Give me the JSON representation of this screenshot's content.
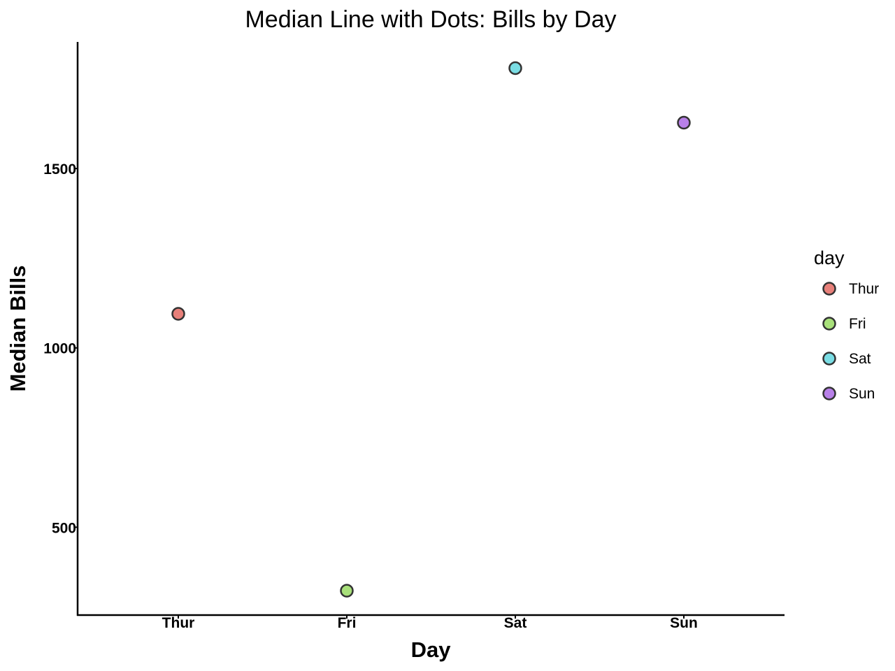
{
  "chart_data": {
    "type": "scatter",
    "title": "Median Line with Dots: Bills by Day",
    "xlabel": "Day",
    "ylabel": "Median Bills",
    "categories": [
      "Thur",
      "Fri",
      "Sat",
      "Sun"
    ],
    "values": [
      1095,
      323,
      1780,
      1628
    ],
    "colors": [
      "#E8807A",
      "#A8E07A",
      "#7ADDE4",
      "#B880E8"
    ],
    "ylim": [
      255,
      1853
    ],
    "yticks": [
      500,
      1000,
      1500
    ],
    "grid": false,
    "legend": {
      "title": "day",
      "position": "right",
      "items": [
        "Thur",
        "Fri",
        "Sat",
        "Sun"
      ]
    }
  }
}
